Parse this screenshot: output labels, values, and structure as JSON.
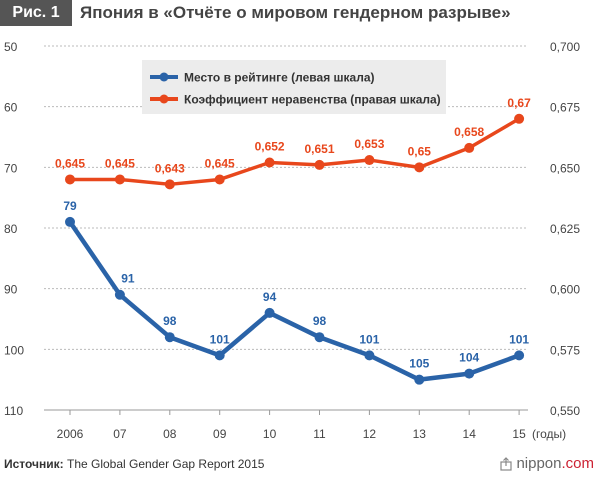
{
  "figure": {
    "badge": "Рис. 1",
    "title": "Япония в «Отчёте о мировом гендерном разрыве»"
  },
  "chart_data": {
    "type": "line",
    "categories": [
      "2006",
      "07",
      "08",
      "09",
      "10",
      "11",
      "12",
      "13",
      "14",
      "15"
    ],
    "x_unit_label": "(годы)",
    "series": [
      {
        "name": "Место в рейтинге (левая шкала)",
        "axis": "left",
        "color": "#2a63a8",
        "values": [
          79,
          91,
          98,
          101,
          94,
          98,
          101,
          105,
          104,
          101
        ],
        "labels": [
          "79",
          "91",
          "98",
          "101",
          "94",
          "98",
          "101",
          "105",
          "104",
          "101"
        ]
      },
      {
        "name": "Коэффициент неравенства (правая шкала)",
        "axis": "right",
        "color": "#e8471c",
        "values": [
          0.645,
          0.645,
          0.643,
          0.645,
          0.652,
          0.651,
          0.653,
          0.65,
          0.658,
          0.67
        ],
        "labels": [
          "0,645",
          "0,645",
          "0,643",
          "0,645",
          "0,652",
          "0,651",
          "0,653",
          "0,65",
          "0,658",
          "0,67"
        ]
      }
    ],
    "left_axis": {
      "range": [
        50,
        110
      ],
      "inverted": true,
      "ticks": [
        50,
        60,
        70,
        80,
        90,
        100,
        110
      ],
      "tick_labels": [
        "50",
        "60",
        "70",
        "80",
        "90",
        "100",
        "110"
      ]
    },
    "right_axis": {
      "range": [
        0.55,
        0.7
      ],
      "ticks": [
        0.7,
        0.675,
        0.65,
        0.625,
        0.6,
        0.575,
        0.55
      ],
      "tick_labels": [
        "0,700",
        "0,675",
        "0,650",
        "0,625",
        "0,600",
        "0,575",
        "0,550"
      ]
    },
    "grid": true,
    "legend_position": "top-center"
  },
  "footer": {
    "source_label": "Источник:",
    "source_text": "The Global Gender Gap Report 2015",
    "brand_name": "nippon",
    "brand_suffix": ".com",
    "brand_icon": "share-icon"
  }
}
